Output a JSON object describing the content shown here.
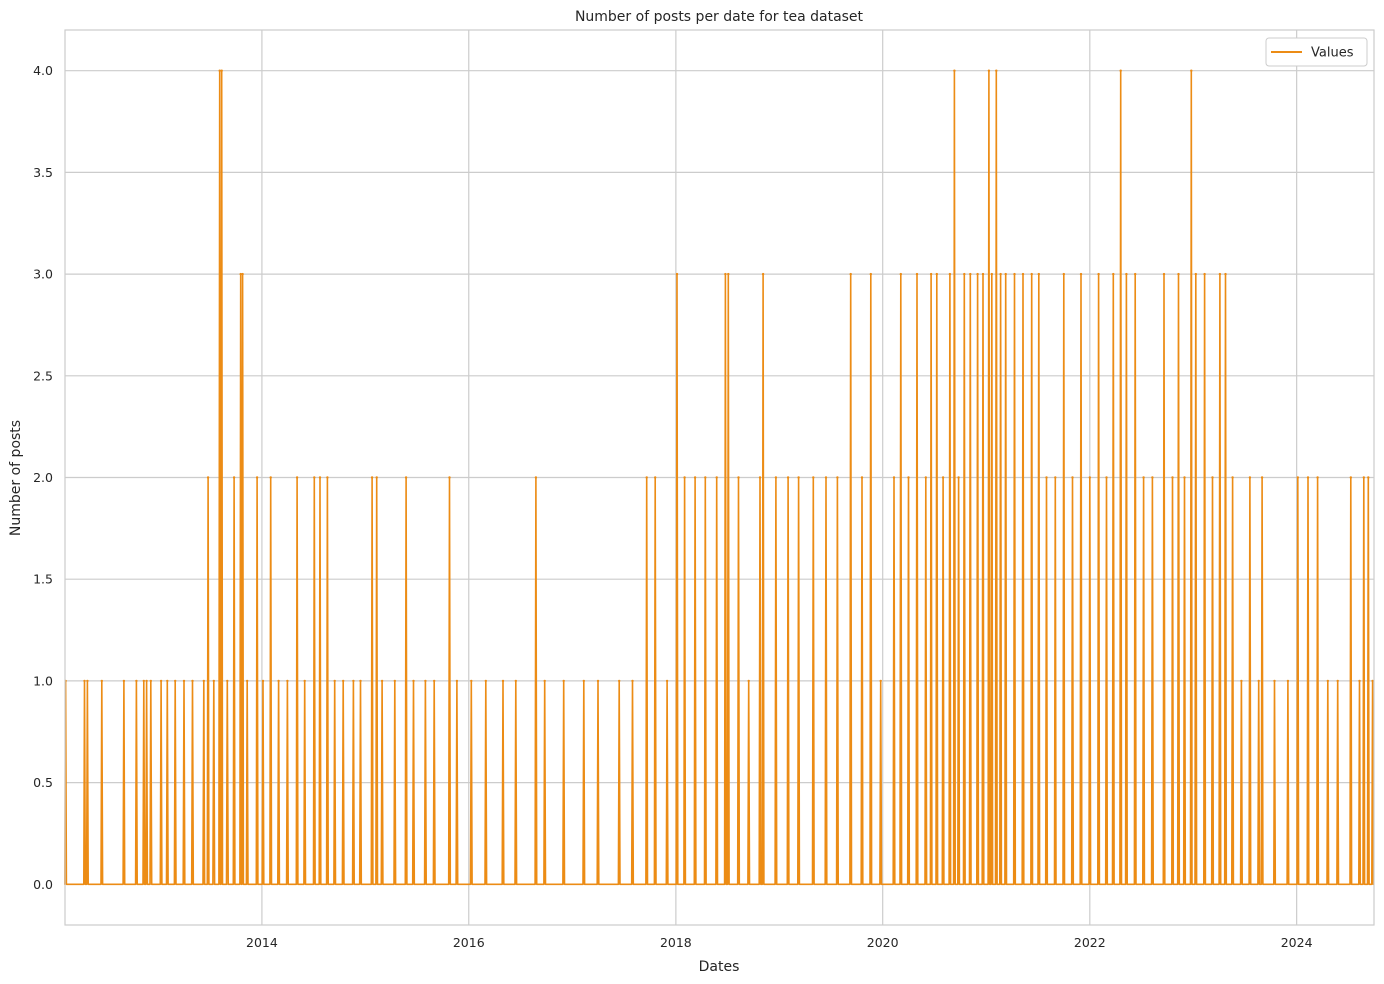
{
  "chart_data": {
    "type": "line",
    "title": "Number of posts per date for tea dataset",
    "xlabel": "Dates",
    "ylabel": "Number of posts",
    "x_range": [
      "2012-02-06",
      "2024-09-30"
    ],
    "ylim": [
      -0.2,
      4.2
    ],
    "x_ticks": [
      "2014",
      "2016",
      "2018",
      "2020",
      "2022",
      "2024"
    ],
    "y_ticks": [
      "0.0",
      "0.5",
      "1.0",
      "1.5",
      "2.0",
      "2.5",
      "3.0",
      "3.5",
      "4.0"
    ],
    "grid": true,
    "legend": {
      "position": "top-right",
      "entries": [
        "Values"
      ]
    },
    "series": [
      {
        "name": "Values",
        "color": "#ec8c15",
        "points": [
          [
            "2012-02-08",
            1
          ],
          [
            "2012-04-15",
            1
          ],
          [
            "2012-04-25",
            1
          ],
          [
            "2012-06-15",
            1
          ],
          [
            "2012-09-01",
            1
          ],
          [
            "2012-10-15",
            1
          ],
          [
            "2012-11-10",
            1
          ],
          [
            "2012-11-20",
            1
          ],
          [
            "2012-12-05",
            1
          ],
          [
            "2013-01-10",
            1
          ],
          [
            "2013-02-01",
            1
          ],
          [
            "2013-03-01",
            1
          ],
          [
            "2013-04-01",
            1
          ],
          [
            "2013-05-01",
            1
          ],
          [
            "2013-06-10",
            1
          ],
          [
            "2013-06-25",
            2
          ],
          [
            "2013-07-15",
            1
          ],
          [
            "2013-08-05",
            4
          ],
          [
            "2013-08-12",
            4
          ],
          [
            "2013-09-01",
            1
          ],
          [
            "2013-09-25",
            2
          ],
          [
            "2013-10-18",
            3
          ],
          [
            "2013-10-25",
            3
          ],
          [
            "2013-11-10",
            1
          ],
          [
            "2013-12-15",
            2
          ],
          [
            "2014-01-05",
            1
          ],
          [
            "2014-02-01",
            2
          ],
          [
            "2014-03-01",
            1
          ],
          [
            "2014-04-01",
            1
          ],
          [
            "2014-05-05",
            2
          ],
          [
            "2014-06-01",
            1
          ],
          [
            "2014-07-05",
            2
          ],
          [
            "2014-07-25",
            2
          ],
          [
            "2014-08-20",
            2
          ],
          [
            "2014-09-15",
            1
          ],
          [
            "2014-10-15",
            1
          ],
          [
            "2014-11-20",
            1
          ],
          [
            "2014-12-15",
            1
          ],
          [
            "2015-01-25",
            2
          ],
          [
            "2015-02-10",
            2
          ],
          [
            "2015-03-01",
            1
          ],
          [
            "2015-04-15",
            1
          ],
          [
            "2015-05-25",
            2
          ],
          [
            "2015-06-20",
            1
          ],
          [
            "2015-08-01",
            1
          ],
          [
            "2015-09-01",
            1
          ],
          [
            "2015-10-25",
            2
          ],
          [
            "2015-11-20",
            1
          ],
          [
            "2016-01-10",
            1
          ],
          [
            "2016-03-01",
            1
          ],
          [
            "2016-05-01",
            1
          ],
          [
            "2016-06-15",
            1
          ],
          [
            "2016-08-25",
            2
          ],
          [
            "2016-09-25",
            1
          ],
          [
            "2016-12-01",
            1
          ],
          [
            "2017-02-10",
            1
          ],
          [
            "2017-04-01",
            1
          ],
          [
            "2017-06-15",
            1
          ],
          [
            "2017-08-01",
            1
          ],
          [
            "2017-09-20",
            2
          ],
          [
            "2017-10-20",
            2
          ],
          [
            "2017-12-01",
            1
          ],
          [
            "2018-01-05",
            3
          ],
          [
            "2018-02-01",
            2
          ],
          [
            "2018-03-10",
            2
          ],
          [
            "2018-04-15",
            2
          ],
          [
            "2018-05-25",
            2
          ],
          [
            "2018-06-25",
            3
          ],
          [
            "2018-07-05",
            3
          ],
          [
            "2018-08-10",
            2
          ],
          [
            "2018-09-15",
            1
          ],
          [
            "2018-10-25",
            2
          ],
          [
            "2018-11-05",
            3
          ],
          [
            "2018-12-20",
            2
          ],
          [
            "2019-02-01",
            2
          ],
          [
            "2019-03-10",
            2
          ],
          [
            "2019-05-01",
            2
          ],
          [
            "2019-06-15",
            2
          ],
          [
            "2019-07-25",
            2
          ],
          [
            "2019-09-10",
            3
          ],
          [
            "2019-10-20",
            2
          ],
          [
            "2019-11-20",
            3
          ],
          [
            "2019-12-25",
            1
          ],
          [
            "2020-02-10",
            2
          ],
          [
            "2020-03-05",
            3
          ],
          [
            "2020-04-01",
            2
          ],
          [
            "2020-05-01",
            3
          ],
          [
            "2020-06-01",
            2
          ],
          [
            "2020-06-20",
            3
          ],
          [
            "2020-07-10",
            3
          ],
          [
            "2020-08-01",
            2
          ],
          [
            "2020-08-25",
            3
          ],
          [
            "2020-09-10",
            4
          ],
          [
            "2020-09-25",
            2
          ],
          [
            "2020-10-15",
            3
          ],
          [
            "2020-11-05",
            3
          ],
          [
            "2020-12-01",
            3
          ],
          [
            "2020-12-20",
            3
          ],
          [
            "2021-01-10",
            4
          ],
          [
            "2021-01-20",
            3
          ],
          [
            "2021-02-05",
            4
          ],
          [
            "2021-02-20",
            3
          ],
          [
            "2021-03-10",
            3
          ],
          [
            "2021-04-10",
            3
          ],
          [
            "2021-05-10",
            3
          ],
          [
            "2021-06-10",
            3
          ],
          [
            "2021-07-05",
            3
          ],
          [
            "2021-08-01",
            2
          ],
          [
            "2021-09-01",
            2
          ],
          [
            "2021-10-01",
            3
          ],
          [
            "2021-11-01",
            2
          ],
          [
            "2021-12-01",
            3
          ],
          [
            "2022-01-01",
            2
          ],
          [
            "2022-02-01",
            3
          ],
          [
            "2022-03-01",
            2
          ],
          [
            "2022-03-25",
            3
          ],
          [
            "2022-04-20",
            4
          ],
          [
            "2022-05-10",
            3
          ],
          [
            "2022-06-10",
            3
          ],
          [
            "2022-07-10",
            2
          ],
          [
            "2022-08-10",
            2
          ],
          [
            "2022-09-20",
            3
          ],
          [
            "2022-10-20",
            2
          ],
          [
            "2022-11-10",
            3
          ],
          [
            "2022-12-01",
            2
          ],
          [
            "2022-12-25",
            4
          ],
          [
            "2023-01-10",
            3
          ],
          [
            "2023-02-10",
            3
          ],
          [
            "2023-03-10",
            2
          ],
          [
            "2023-04-05",
            3
          ],
          [
            "2023-04-25",
            3
          ],
          [
            "2023-05-20",
            2
          ],
          [
            "2023-06-20",
            1
          ],
          [
            "2023-07-20",
            2
          ],
          [
            "2023-08-20",
            1
          ],
          [
            "2023-09-01",
            2
          ],
          [
            "2023-10-15",
            1
          ],
          [
            "2023-12-01",
            1
          ],
          [
            "2024-01-05",
            2
          ],
          [
            "2024-02-10",
            2
          ],
          [
            "2024-03-15",
            2
          ],
          [
            "2024-04-20",
            1
          ],
          [
            "2024-05-25",
            1
          ],
          [
            "2024-07-10",
            2
          ],
          [
            "2024-08-10",
            1
          ],
          [
            "2024-08-25",
            2
          ],
          [
            "2024-09-10",
            2
          ],
          [
            "2024-09-25",
            1
          ]
        ]
      }
    ]
  }
}
